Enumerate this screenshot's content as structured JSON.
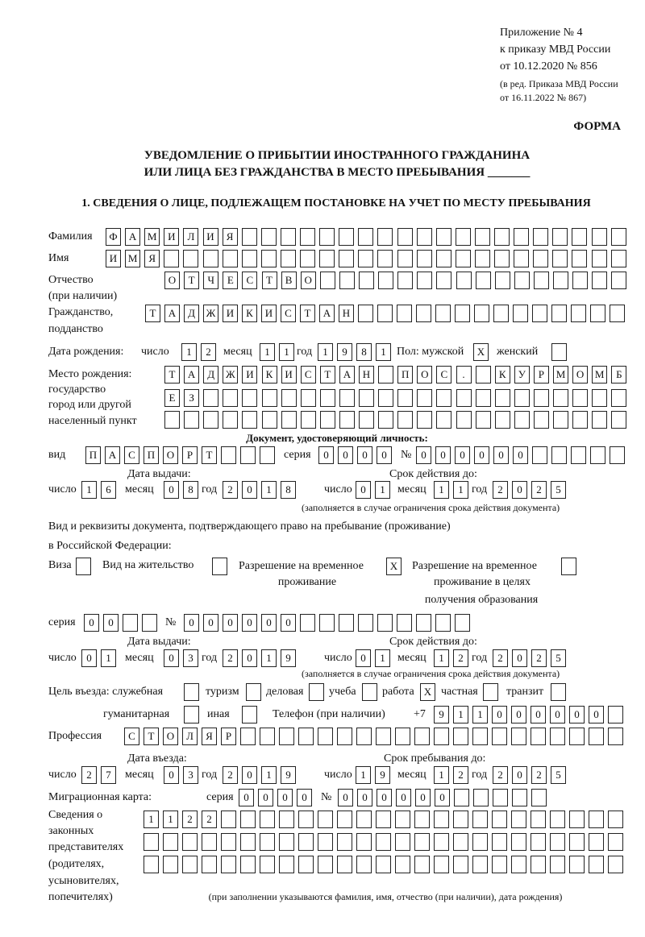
{
  "header": {
    "l1": "Приложение № 4",
    "l2": "к приказу МВД России",
    "l3": "от 10.12.2020 № 856",
    "l4": "(в ред. Приказа МВД России",
    "l5": "от 16.11.2022 № 867)",
    "forma": "ФОРМА"
  },
  "title": {
    "l1": "УВЕДОМЛЕНИЕ О ПРИБЫТИИ ИНОСТРАННОГО ГРАЖДАНИНА",
    "l2": "ИЛИ ЛИЦА БЕЗ ГРАЖДАНСТВА В МЕСТО ПРЕБЫВАНИЯ _______"
  },
  "section1": "1. СВЕДЕНИЯ О ЛИЦЕ, ПОДЛЕЖАЩЕМ ПОСТАНОВКЕ НА УЧЕТ ПО МЕСТУ ПРЕБЫВАНИЯ",
  "labels": {
    "surname": "Фамилия",
    "name": "Имя",
    "patronymic": "Отчество",
    "patronymic2": "(при наличии)",
    "citizenship": "Гражданство,",
    "citizenship2": "подданство",
    "birth_date": "Дата рождения:",
    "day": "число",
    "month": "месяц",
    "year": "год",
    "sex": "Пол: мужской",
    "female": "женский",
    "birth_place": "Место рождения:",
    "bp2": "государство",
    "bp3": "город или другой",
    "bp4": "населенный пункт",
    "id_doc": "Документ, удостоверяющий личность:",
    "kind": "вид",
    "series": "серия",
    "number": "№",
    "issue_date": "Дата выдачи:",
    "valid_until": "Срок действия до:",
    "valid_note": "(заполняется в случае ограничения срока действия документа)",
    "right_doc1": "Вид и реквизиты документа, подтверждающего право на пребывание (проживание)",
    "right_doc2": "в Российской Федерации:",
    "visa": "Виза",
    "residence": "Вид на жительство",
    "trp1": "Разрешение на временное",
    "trp2": "проживание",
    "trpe1": "Разрешение на временное",
    "trpe2": "проживание в целях",
    "trpe3": "получения образования",
    "purpose": "Цель въезда: служебная",
    "tourism": "туризм",
    "business": "деловая",
    "study": "учеба",
    "work": "работа",
    "private": "частная",
    "transit": "транзит",
    "humanitarian": "гуманитарная",
    "other": "иная",
    "phone": "Телефон (при наличии)",
    "phone_prefix": "+7",
    "profession": "Профессия",
    "entry_date": "Дата въезда:",
    "stay_until": "Срок пребывания до:",
    "migration_card": "Миграционная карта:",
    "reps1": "Сведения о",
    "reps2": "законных",
    "reps3": "представителях",
    "reps4": "(родителях,",
    "reps5": "усыновителях,",
    "reps6": "попечителях)",
    "reps_note": "(при заполнении указываются фамилия, имя, отчество (при наличии), дата рождения)"
  },
  "person": {
    "surname": [
      "Ф",
      "А",
      "М",
      "И",
      "Л",
      "И",
      "Я"
    ],
    "name": [
      "И",
      "М",
      "Я"
    ],
    "patronymic": [
      "О",
      "Т",
      "Ч",
      "Е",
      "С",
      "Т",
      "В",
      "О"
    ],
    "citizenship": [
      "Т",
      "А",
      "Д",
      "Ж",
      "И",
      "К",
      "И",
      "С",
      "Т",
      "А",
      "Н"
    ],
    "birth_day": [
      "1",
      "2"
    ],
    "birth_month": [
      "1",
      "1"
    ],
    "birth_year": [
      "1",
      "9",
      "8",
      "1"
    ],
    "male": [
      "X"
    ],
    "female": [],
    "birth_place_1": [
      "Т",
      "А",
      "Д",
      "Ж",
      "И",
      "К",
      "И",
      "С",
      "Т",
      "А",
      "Н",
      "",
      "П",
      "О",
      "С",
      ".",
      "",
      "К",
      "У",
      "Р",
      "М",
      "О",
      "М",
      "Б"
    ],
    "birth_place_2": [
      "Е",
      "З"
    ],
    "birth_place_3": []
  },
  "id_document": {
    "kind": [
      "П",
      "А",
      "С",
      "П",
      "О",
      "Р",
      "Т"
    ],
    "series": [
      "0",
      "0",
      "0",
      "0"
    ],
    "number": [
      "0",
      "0",
      "0",
      "0",
      "0",
      "0"
    ],
    "issue_day": [
      "1",
      "6"
    ],
    "issue_month": [
      "0",
      "8"
    ],
    "issue_year": [
      "2",
      "0",
      "1",
      "8"
    ],
    "valid_day": [
      "0",
      "1"
    ],
    "valid_month": [
      "1",
      "1"
    ],
    "valid_year": [
      "2",
      "0",
      "2",
      "5"
    ]
  },
  "right_document": {
    "visa": [],
    "residence": [],
    "trp": [
      "X"
    ],
    "trp_edu": [],
    "series": [
      "0",
      "0"
    ],
    "number": [
      "0",
      "0",
      "0",
      "0",
      "0",
      "0"
    ],
    "issue_day": [
      "0",
      "1"
    ],
    "issue_month": [
      "0",
      "3"
    ],
    "issue_year": [
      "2",
      "0",
      "1",
      "9"
    ],
    "valid_day": [
      "0",
      "1"
    ],
    "valid_month": [
      "1",
      "2"
    ],
    "valid_year": [
      "2",
      "0",
      "2",
      "5"
    ]
  },
  "purpose": {
    "official": [],
    "tourism": [],
    "business": [],
    "study": [],
    "work": [
      "X"
    ],
    "private": [],
    "transit": [],
    "humanitarian": [],
    "other": []
  },
  "phone": [
    "9",
    "1",
    "1",
    "0",
    "0",
    "0",
    "0",
    "0",
    "0"
  ],
  "profession": [
    "С",
    "Т",
    "О",
    "Л",
    "Я",
    "Р"
  ],
  "entry": {
    "day": [
      "2",
      "7"
    ],
    "month": [
      "0",
      "3"
    ],
    "year": [
      "2",
      "0",
      "1",
      "9"
    ],
    "stay_day": [
      "1",
      "9"
    ],
    "stay_month": [
      "1",
      "2"
    ],
    "stay_year": [
      "2",
      "0",
      "2",
      "5"
    ]
  },
  "migration_card": {
    "series": [
      "0",
      "0",
      "0",
      "0"
    ],
    "number": [
      "0",
      "0",
      "0",
      "0",
      "0",
      "0"
    ]
  },
  "representatives": {
    "row1": [
      "1",
      "1",
      "2",
      "2"
    ],
    "row2": [],
    "row3": []
  }
}
